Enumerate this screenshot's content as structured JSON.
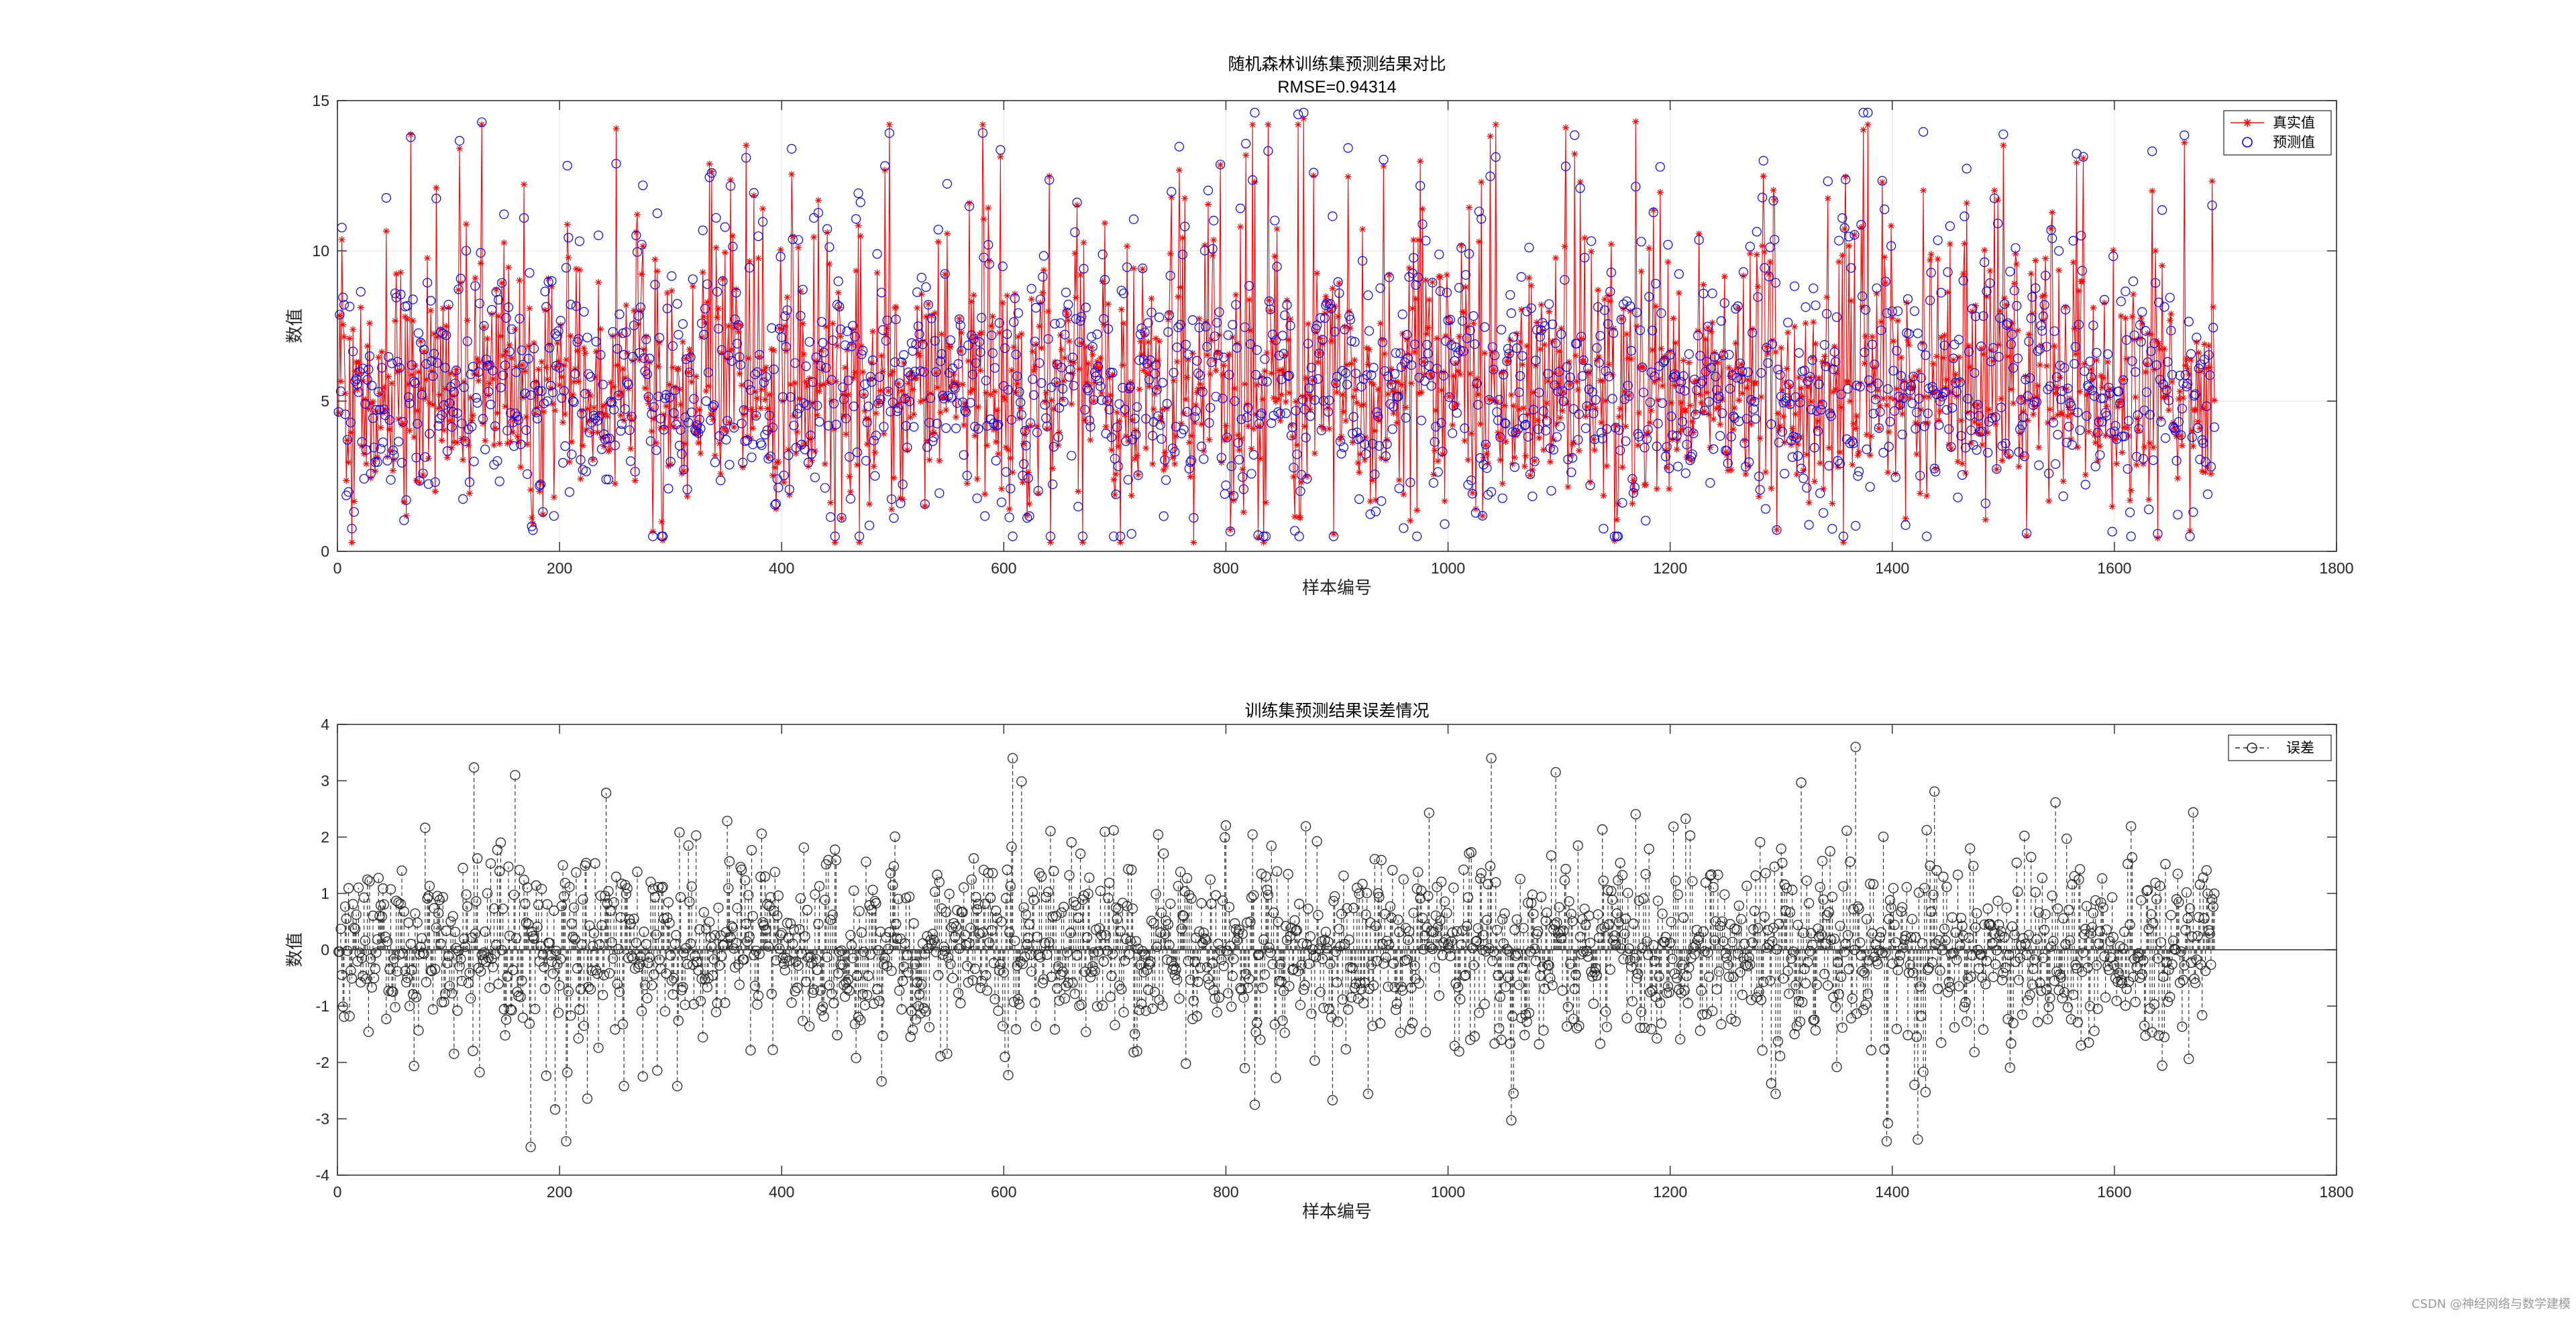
{
  "chart_data": [
    {
      "type": "line",
      "title": "随机森林训练集预测结果对比",
      "subtitle": "RMSE=0.94314",
      "xlabel": "样本编号",
      "ylabel": "数值",
      "xlim": [
        0,
        1800
      ],
      "ylim": [
        0,
        15
      ],
      "xticks": [
        0,
        200,
        400,
        600,
        800,
        1000,
        1200,
        1400,
        1600,
        1800
      ],
      "yticks": [
        0,
        5,
        10,
        15
      ],
      "grid": true,
      "legend_position": "top-right",
      "n_samples": 1690,
      "series": [
        {
          "name": "真实值",
          "color": "#ff0000",
          "marker": "asterisk",
          "line": "solid"
        },
        {
          "name": "预测值",
          "color": "#0000ff",
          "marker": "circle",
          "line": "none"
        }
      ],
      "notable_points": [
        {
          "x": 870,
          "y": 14.4
        },
        {
          "x": 1169,
          "y": 14.3
        },
        {
          "x": 1106,
          "y": 14.1
        },
        {
          "x": 1663,
          "y": 13.6
        },
        {
          "x": 110,
          "y": 13.4
        }
      ]
    },
    {
      "type": "scatter",
      "title": "训练集预测结果误差情况",
      "xlabel": "样本编号",
      "ylabel": "数值",
      "xlim": [
        0,
        1800
      ],
      "ylim": [
        -4,
        4
      ],
      "xticks": [
        0,
        200,
        400,
        600,
        800,
        1000,
        1200,
        1400,
        1600,
        1800
      ],
      "yticks": [
        -4,
        -3,
        -2,
        -1,
        0,
        1,
        2,
        3,
        4
      ],
      "grid": false,
      "legend_position": "top-right",
      "n_samples": 1690,
      "series": [
        {
          "name": "误差",
          "color": "#262626",
          "marker": "circle",
          "line": "dashed stem"
        }
      ],
      "notable_points": [
        {
          "x": 1367,
          "y": 3.6
        },
        {
          "x": 608,
          "y": 3.4
        },
        {
          "x": 1097,
          "y": 3.15
        },
        {
          "x": 160,
          "y": 3.1
        },
        {
          "x": 174,
          "y": -3.5
        },
        {
          "x": 826,
          "y": -2.75
        },
        {
          "x": 1059,
          "y": -2.55
        }
      ]
    }
  ],
  "watermark": "CSDN @神经网络与数学建模"
}
